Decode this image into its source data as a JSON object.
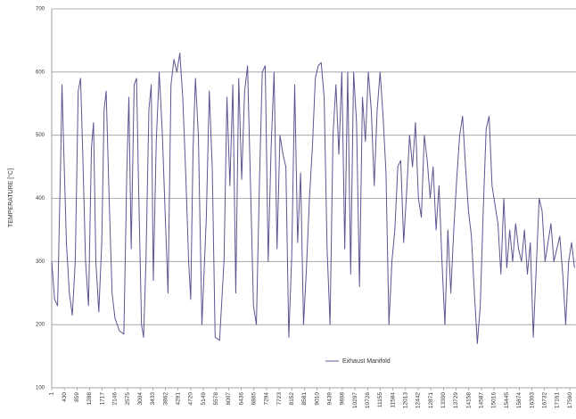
{
  "chart_data": {
    "type": "line",
    "ylabel": "TEMPERATURE [°C]",
    "x": [
      1,
      100,
      200,
      300,
      350,
      420,
      500,
      600,
      700,
      800,
      900,
      980,
      1050,
      1150,
      1250,
      1350,
      1420,
      1500,
      1600,
      1700,
      1780,
      1850,
      1950,
      2050,
      2150,
      2300,
      2450,
      2550,
      2620,
      2700,
      2800,
      2880,
      2950,
      3050,
      3120,
      3200,
      3300,
      3380,
      3450,
      3550,
      3650,
      3750,
      3850,
      3950,
      4050,
      4150,
      4250,
      4350,
      4450,
      4550,
      4650,
      4720,
      4800,
      4880,
      4980,
      5100,
      5250,
      5350,
      5450,
      5550,
      5700,
      5850,
      5950,
      6050,
      6150,
      6250,
      6350,
      6450,
      6550,
      6650,
      6750,
      6850,
      6950,
      7050,
      7150,
      7250,
      7350,
      7450,
      7550,
      7650,
      7750,
      7850,
      7950,
      8050,
      8150,
      8250,
      8350,
      8450,
      8550,
      8650,
      8750,
      8850,
      8950,
      9050,
      9150,
      9250,
      9350,
      9450,
      9550,
      9650,
      9750,
      9850,
      9950,
      10050,
      10150,
      10250,
      10350,
      10450,
      10550,
      10650,
      10750,
      10850,
      10950,
      11050,
      11150,
      11250,
      11350,
      11450,
      11550,
      11650,
      11750,
      11850,
      11950,
      12050,
      12150,
      12250,
      12350,
      12450,
      12550,
      12650,
      12750,
      12850,
      12950,
      13050,
      13150,
      13250,
      13350,
      13450,
      13550,
      13650,
      13750,
      13850,
      13950,
      14050,
      14150,
      14250,
      14350,
      14450,
      14550,
      14650,
      14750,
      14850,
      14950,
      15050,
      15150,
      15250,
      15350,
      15450,
      15550,
      15650,
      15750,
      15850,
      15950,
      16050,
      16150,
      16250,
      16350,
      16450,
      16550,
      16650,
      16750,
      16850,
      16950,
      17050,
      17150,
      17250,
      17350,
      17450,
      17550,
      17650,
      17750
    ],
    "series": [
      {
        "name": "Exhaust Manifold",
        "color": "#5d5490",
        "values": [
          300,
          240,
          230,
          450,
          580,
          460,
          330,
          250,
          215,
          300,
          570,
          590,
          480,
          300,
          230,
          480,
          520,
          300,
          220,
          330,
          540,
          570,
          400,
          250,
          210,
          190,
          185,
          440,
          560,
          320,
          580,
          590,
          420,
          200,
          180,
          300,
          540,
          580,
          270,
          490,
          600,
          510,
          380,
          250,
          580,
          620,
          600,
          630,
          560,
          440,
          300,
          240,
          480,
          590,
          500,
          200,
          370,
          570,
          450,
          180,
          175,
          300,
          560,
          420,
          580,
          250,
          590,
          430,
          570,
          610,
          420,
          230,
          200,
          420,
          600,
          610,
          300,
          480,
          600,
          320,
          500,
          470,
          450,
          180,
          310,
          580,
          330,
          440,
          200,
          290,
          400,
          480,
          590,
          610,
          615,
          560,
          320,
          200,
          500,
          580,
          470,
          600,
          320,
          600,
          280,
          600,
          520,
          260,
          560,
          490,
          600,
          540,
          420,
          540,
          600,
          530,
          440,
          200,
          300,
          350,
          450,
          460,
          330,
          410,
          500,
          450,
          520,
          400,
          370,
          500,
          460,
          400,
          450,
          350,
          420,
          300,
          200,
          350,
          250,
          350,
          430,
          500,
          530,
          450,
          380,
          340,
          250,
          170,
          230,
          380,
          510,
          530,
          420,
          390,
          360,
          280,
          400,
          290,
          350,
          300,
          360,
          320,
          300,
          350,
          280,
          330,
          180,
          290,
          400,
          380,
          300,
          330,
          360,
          300,
          320,
          340,
          280,
          200,
          300,
          330,
          290
        ]
      }
    ],
    "xlim": [
      1,
      17800
    ],
    "xticks": [
      1,
      430,
      859,
      1288,
      1717,
      2146,
      2575,
      3004,
      3433,
      3862,
      4291,
      4720,
      5149,
      5578,
      6007,
      6436,
      6865,
      7294,
      7723,
      8152,
      8581,
      9010,
      9439,
      9868,
      10297,
      10726,
      11155,
      11584,
      12013,
      12442,
      12871,
      13300,
      13729,
      14158,
      14587,
      15016,
      15445,
      15874,
      16303,
      16732,
      17161,
      17590
    ],
    "ylim": [
      100,
      700
    ],
    "yticks": [
      100,
      200,
      300,
      400,
      500,
      600,
      700
    ],
    "grid": true
  }
}
